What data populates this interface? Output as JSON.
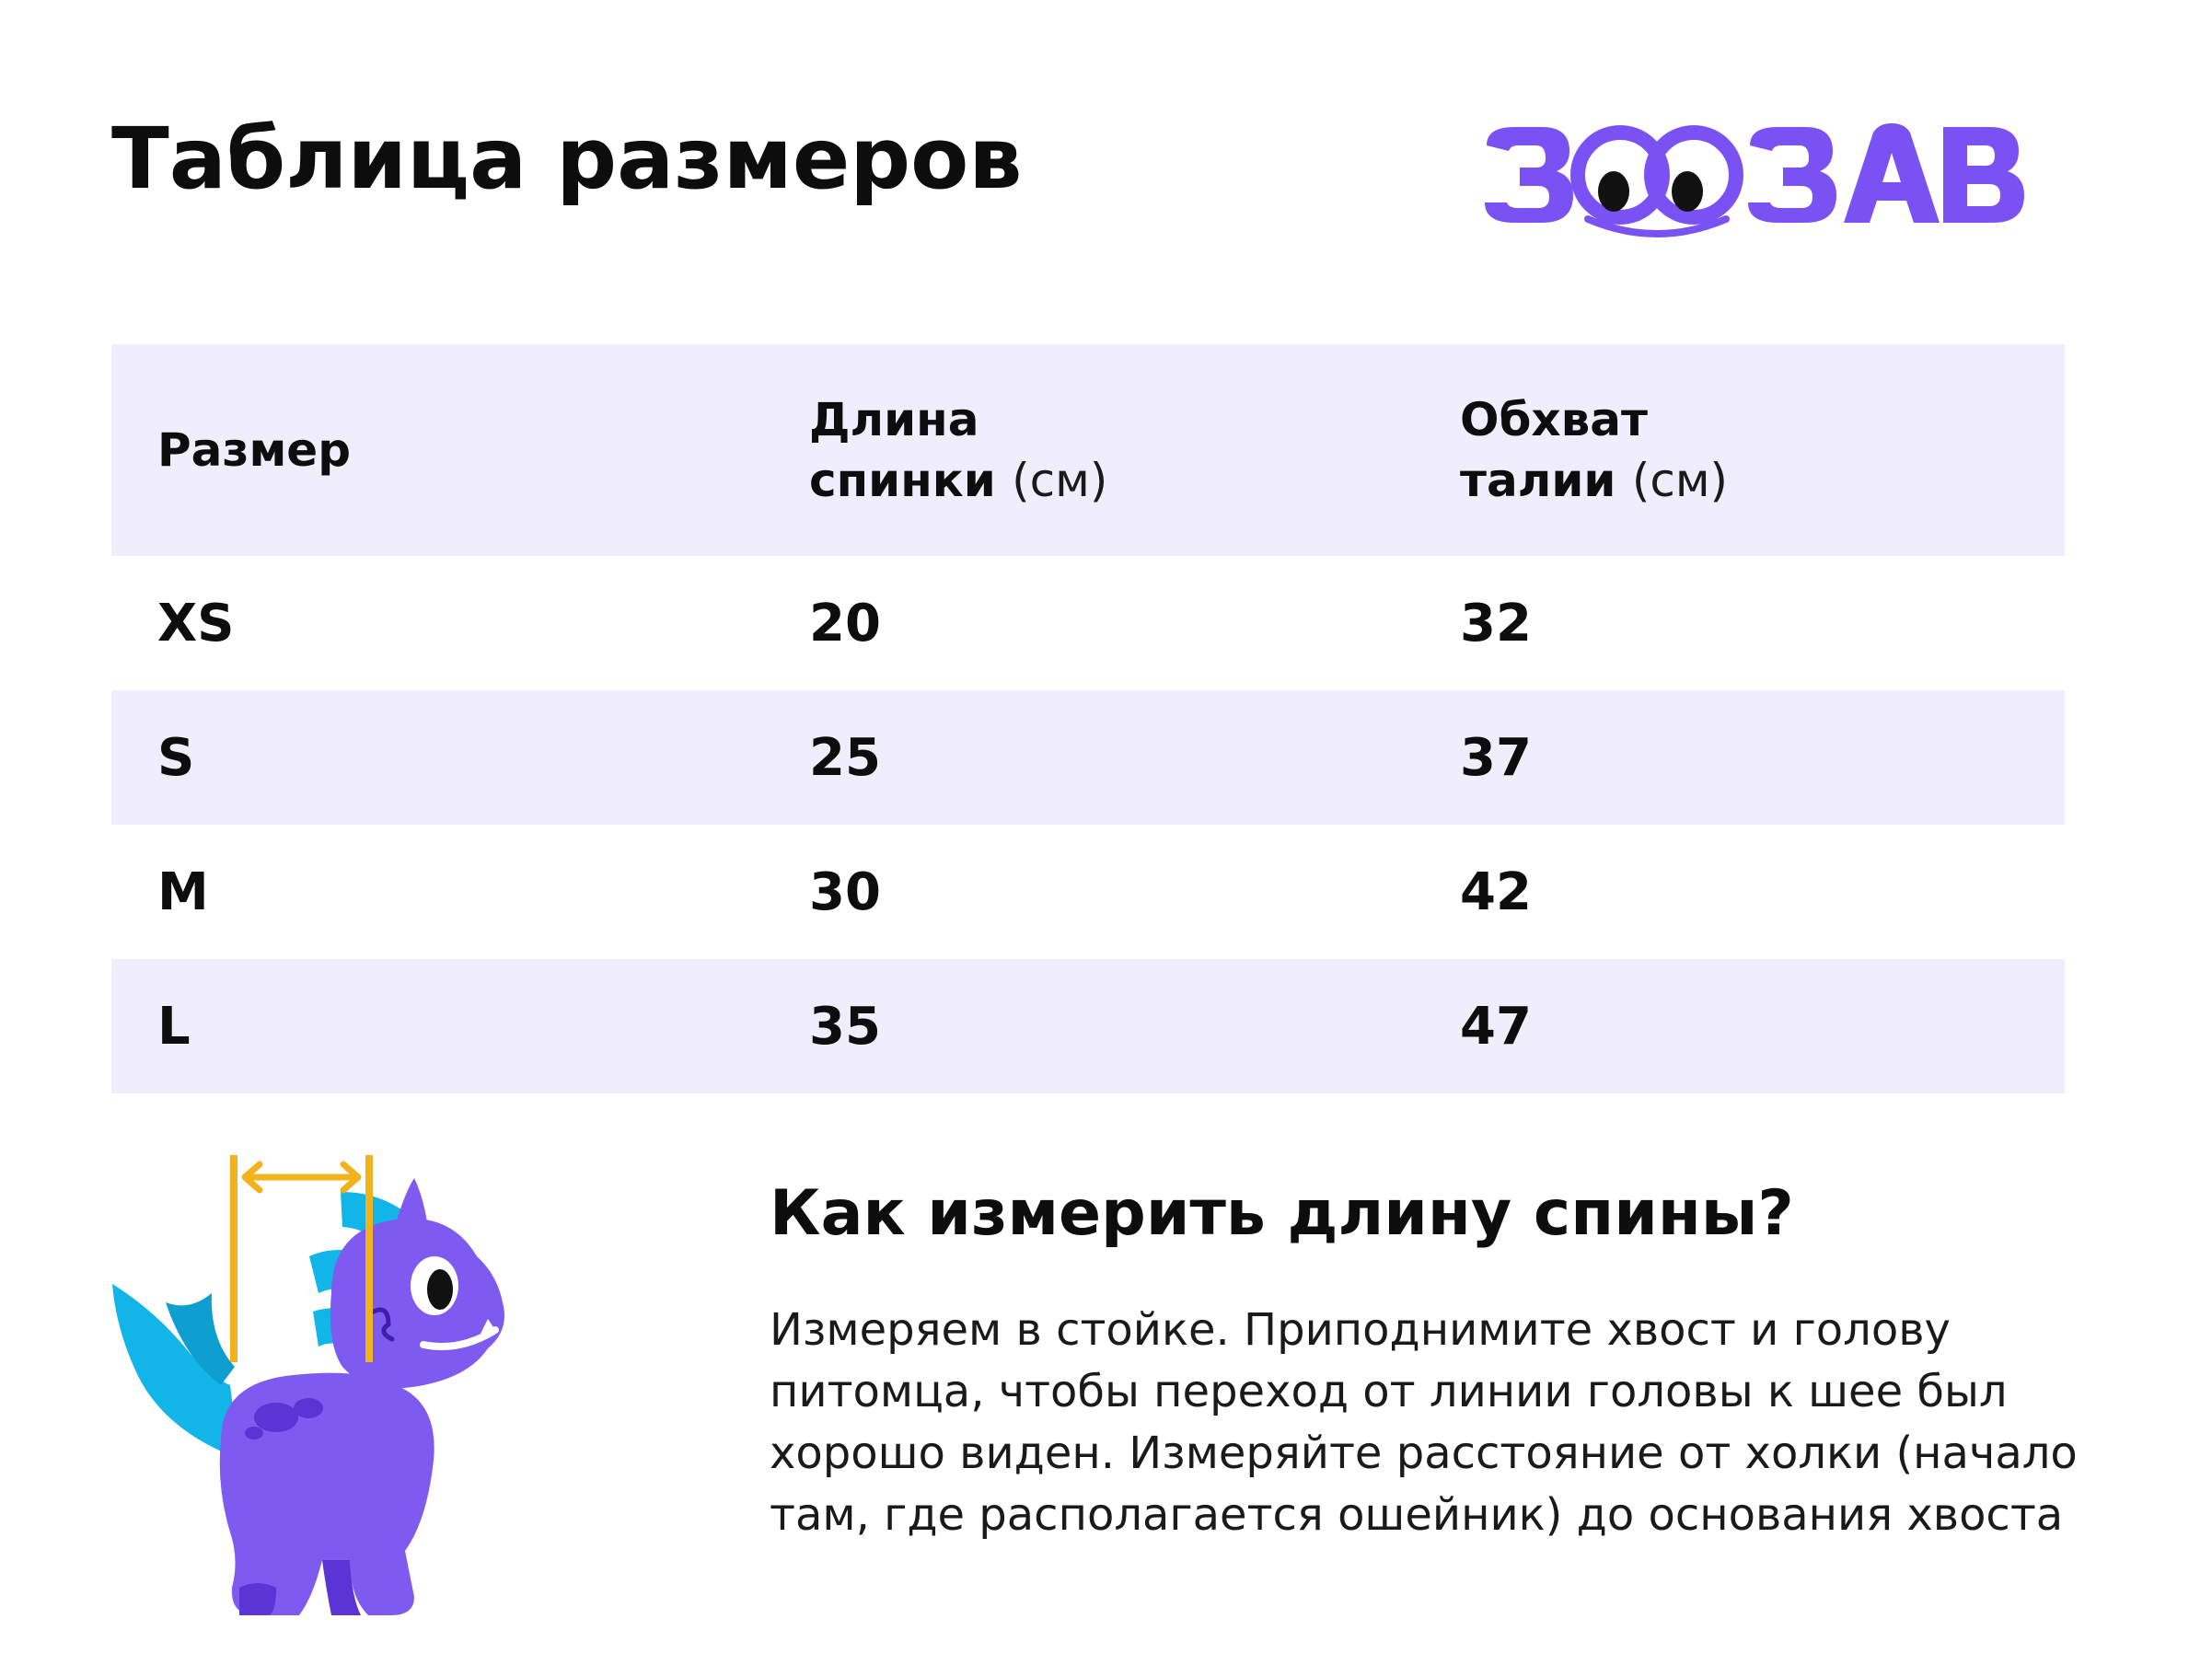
{
  "title": "Таблица размеров",
  "logo": {
    "text": "ЗООЗАВР",
    "color": "#7a52f4"
  },
  "table": {
    "headers": [
      {
        "main": "Размер",
        "line1": "",
        "line2": "",
        "unit": ""
      },
      {
        "main": "",
        "line1": "Длина",
        "line2": "спинки",
        "unit": "(см)"
      },
      {
        "main": "",
        "line1": "Обхват",
        "line2": "талии",
        "unit": "(см)"
      }
    ],
    "rows": [
      {
        "size": "XS",
        "back_length": "20",
        "waist": "32"
      },
      {
        "size": "S",
        "back_length": "25",
        "waist": "37"
      },
      {
        "size": "M",
        "back_length": "30",
        "waist": "42"
      },
      {
        "size": "L",
        "back_length": "35",
        "waist": "47"
      }
    ],
    "stripe_color": "#f0eefc"
  },
  "howto": {
    "title": "Как измерить длину спины?",
    "text": "Измеряем в стойке. Приподнимите хвост и голову питомца, чтобы переход от линии головы к шее был хорошо виден. Измеряйте расстояние от холки (начало там, где располагается ошейник) до основания хвоста"
  },
  "colors": {
    "dino_body": "#7f5af0",
    "dino_dark": "#5a34d4",
    "dino_spikes": "#12b5e8",
    "measure_line": "#f2b21c"
  }
}
